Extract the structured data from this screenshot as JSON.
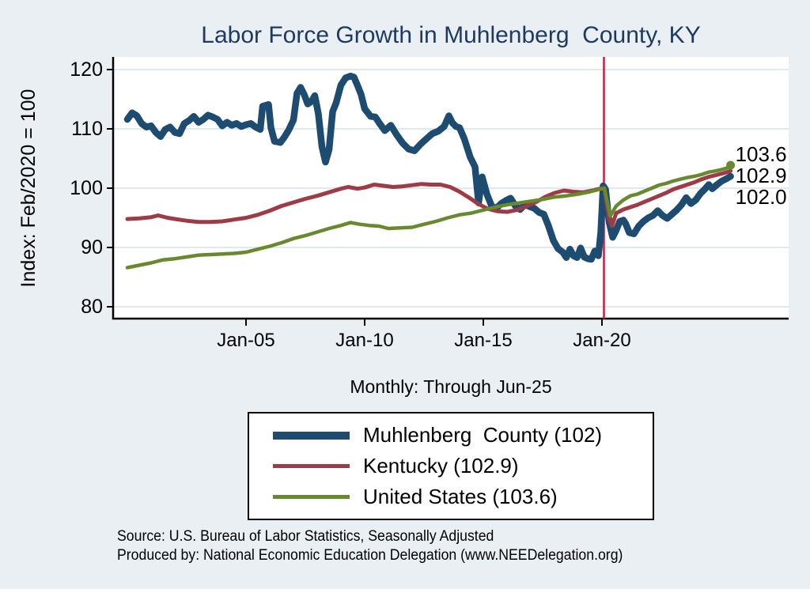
{
  "chart_data": {
    "type": "line",
    "title": "Labor Force Growth in Muhlenberg  County, KY",
    "subtitle": "Monthly: Through Jun-25",
    "ylabel": "Index: Feb/2020 = 100",
    "x_unit": "decimal_year",
    "xlim": [
      1999.4,
      2027.867
    ],
    "ylim": [
      78,
      122.13
    ],
    "yticks": [
      80,
      90,
      100,
      110,
      120
    ],
    "xticks": [
      {
        "x": 2005,
        "label": "Jan-05"
      },
      {
        "x": 2010,
        "label": "Jan-10"
      },
      {
        "x": 2015,
        "label": "Jan-15"
      },
      {
        "x": 2020,
        "label": "Jan-20"
      }
    ],
    "grid": "horizontal",
    "grid_color": "#dfe9ef",
    "plot_bg": "#ffffff",
    "page_bg": "#e9eff3",
    "axis_color": "#000000",
    "title_color": "#1f3a60",
    "vline": {
      "x": 2020.083,
      "color": "#c81f3e",
      "label": "Feb-2020 reference"
    },
    "legend_position": "bottom",
    "series": [
      {
        "name": "Muhlenberg  County (102)",
        "key": "muhlenberg",
        "color": "#1e4c70",
        "width": 8.5,
        "end_label": "102.0",
        "end_value": 102.0,
        "points": [
          [
            2000.0,
            111.6
          ],
          [
            2000.2,
            112.7
          ],
          [
            2000.4,
            112.2
          ],
          [
            2000.6,
            110.9
          ],
          [
            2000.8,
            110.3
          ],
          [
            2001.0,
            110.5
          ],
          [
            2001.2,
            109.4
          ],
          [
            2001.4,
            108.7
          ],
          [
            2001.6,
            109.9
          ],
          [
            2001.8,
            110.3
          ],
          [
            2002.0,
            109.4
          ],
          [
            2002.2,
            109.2
          ],
          [
            2002.4,
            110.9
          ],
          [
            2002.6,
            111.4
          ],
          [
            2002.8,
            112.1
          ],
          [
            2003.0,
            111.1
          ],
          [
            2003.2,
            111.6
          ],
          [
            2003.4,
            112.3
          ],
          [
            2003.6,
            112.0
          ],
          [
            2003.8,
            111.6
          ],
          [
            2004.0,
            110.5
          ],
          [
            2004.2,
            111.1
          ],
          [
            2004.4,
            110.6
          ],
          [
            2004.6,
            110.9
          ],
          [
            2004.8,
            110.4
          ],
          [
            2005.0,
            110.7
          ],
          [
            2005.2,
            110.9
          ],
          [
            2005.4,
            110.3
          ],
          [
            2005.6,
            109.9
          ],
          [
            2005.7,
            113.8
          ],
          [
            2005.95,
            114.1
          ],
          [
            2006.05,
            110.2
          ],
          [
            2006.2,
            107.9
          ],
          [
            2006.45,
            107.7
          ],
          [
            2006.6,
            108.5
          ],
          [
            2006.8,
            109.8
          ],
          [
            2007.0,
            111.5
          ],
          [
            2007.15,
            116.0
          ],
          [
            2007.3,
            117.0
          ],
          [
            2007.45,
            115.8
          ],
          [
            2007.6,
            114.2
          ],
          [
            2007.75,
            114.6
          ],
          [
            2007.9,
            115.6
          ],
          [
            2008.05,
            112.5
          ],
          [
            2008.2,
            107.0
          ],
          [
            2008.35,
            104.4
          ],
          [
            2008.5,
            106.5
          ],
          [
            2008.65,
            112.9
          ],
          [
            2008.8,
            114.4
          ],
          [
            2009.0,
            117.4
          ],
          [
            2009.2,
            118.6
          ],
          [
            2009.4,
            118.9
          ],
          [
            2009.55,
            118.7
          ],
          [
            2009.7,
            117.3
          ],
          [
            2009.85,
            115.8
          ],
          [
            2010.0,
            113.4
          ],
          [
            2010.25,
            112.1
          ],
          [
            2010.45,
            112.0
          ],
          [
            2010.65,
            110.8
          ],
          [
            2010.85,
            109.7
          ],
          [
            2011.1,
            110.6
          ],
          [
            2011.35,
            109.0
          ],
          [
            2011.6,
            107.6
          ],
          [
            2011.85,
            106.6
          ],
          [
            2012.1,
            106.3
          ],
          [
            2012.35,
            107.4
          ],
          [
            2012.6,
            108.3
          ],
          [
            2012.85,
            109.2
          ],
          [
            2013.1,
            109.6
          ],
          [
            2013.35,
            110.4
          ],
          [
            2013.55,
            112.2
          ],
          [
            2013.7,
            111.0
          ],
          [
            2013.85,
            110.4
          ],
          [
            2014.0,
            110.2
          ],
          [
            2014.2,
            108.3
          ],
          [
            2014.45,
            105.2
          ],
          [
            2014.65,
            103.6
          ],
          [
            2014.8,
            97.5
          ],
          [
            2014.95,
            101.9
          ],
          [
            2015.15,
            99.0
          ],
          [
            2015.35,
            97.0
          ],
          [
            2015.55,
            96.6
          ],
          [
            2015.75,
            97.4
          ],
          [
            2015.95,
            97.9
          ],
          [
            2016.15,
            98.3
          ],
          [
            2016.35,
            97.0
          ],
          [
            2016.55,
            96.4
          ],
          [
            2016.75,
            97.2
          ],
          [
            2016.95,
            96.9
          ],
          [
            2017.15,
            96.6
          ],
          [
            2017.35,
            95.9
          ],
          [
            2017.55,
            95.6
          ],
          [
            2017.75,
            93.6
          ],
          [
            2017.95,
            91.2
          ],
          [
            2018.15,
            89.8
          ],
          [
            2018.35,
            89.2
          ],
          [
            2018.5,
            88.3
          ],
          [
            2018.65,
            89.7
          ],
          [
            2018.8,
            88.6
          ],
          [
            2018.95,
            88.3
          ],
          [
            2019.1,
            89.9
          ],
          [
            2019.25,
            88.4
          ],
          [
            2019.4,
            88.1
          ],
          [
            2019.55,
            88.0
          ],
          [
            2019.7,
            89.4
          ],
          [
            2019.85,
            88.6
          ],
          [
            2019.95,
            92.5
          ],
          [
            2020.05,
            100.4
          ],
          [
            2020.15,
            99.8
          ],
          [
            2020.3,
            94.3
          ],
          [
            2020.45,
            91.7
          ],
          [
            2020.6,
            92.9
          ],
          [
            2020.75,
            94.4
          ],
          [
            2020.9,
            94.6
          ],
          [
            2021.0,
            94.0
          ],
          [
            2021.15,
            92.5
          ],
          [
            2021.35,
            92.3
          ],
          [
            2021.55,
            93.6
          ],
          [
            2021.75,
            94.4
          ],
          [
            2021.95,
            95.0
          ],
          [
            2022.15,
            95.4
          ],
          [
            2022.35,
            96.2
          ],
          [
            2022.55,
            95.4
          ],
          [
            2022.75,
            94.9
          ],
          [
            2022.95,
            95.6
          ],
          [
            2023.15,
            96.3
          ],
          [
            2023.35,
            97.2
          ],
          [
            2023.55,
            98.4
          ],
          [
            2023.75,
            97.4
          ],
          [
            2023.95,
            98.0
          ],
          [
            2024.15,
            99.1
          ],
          [
            2024.35,
            99.9
          ],
          [
            2024.5,
            100.6
          ],
          [
            2024.65,
            99.9
          ],
          [
            2024.85,
            100.6
          ],
          [
            2025.05,
            101.2
          ],
          [
            2025.25,
            101.6
          ],
          [
            2025.42,
            102.0
          ]
        ]
      },
      {
        "name": "Kentucky (102.9)",
        "key": "kentucky",
        "color": "#9d3c47",
        "width": 5,
        "end_label": "102.9",
        "end_value": 102.9,
        "points": [
          [
            2000.0,
            94.8
          ],
          [
            2000.5,
            94.9
          ],
          [
            2001.0,
            95.1
          ],
          [
            2001.3,
            95.4
          ],
          [
            2001.7,
            95.0
          ],
          [
            2002.0,
            94.8
          ],
          [
            2002.5,
            94.5
          ],
          [
            2003.0,
            94.3
          ],
          [
            2003.5,
            94.3
          ],
          [
            2004.0,
            94.4
          ],
          [
            2004.5,
            94.7
          ],
          [
            2005.0,
            95.0
          ],
          [
            2005.5,
            95.5
          ],
          [
            2006.0,
            96.2
          ],
          [
            2006.5,
            97.0
          ],
          [
            2007.0,
            97.6
          ],
          [
            2007.5,
            98.2
          ],
          [
            2008.0,
            98.7
          ],
          [
            2008.5,
            99.3
          ],
          [
            2009.0,
            99.9
          ],
          [
            2009.3,
            100.2
          ],
          [
            2009.7,
            99.9
          ],
          [
            2010.0,
            100.1
          ],
          [
            2010.4,
            100.6
          ],
          [
            2010.8,
            100.4
          ],
          [
            2011.2,
            100.2
          ],
          [
            2011.6,
            100.3
          ],
          [
            2012.0,
            100.5
          ],
          [
            2012.4,
            100.7
          ],
          [
            2012.8,
            100.6
          ],
          [
            2013.2,
            100.6
          ],
          [
            2013.6,
            100.2
          ],
          [
            2014.0,
            99.4
          ],
          [
            2014.4,
            98.4
          ],
          [
            2014.8,
            97.3
          ],
          [
            2015.2,
            96.5
          ],
          [
            2015.6,
            96.1
          ],
          [
            2016.0,
            96.0
          ],
          [
            2016.4,
            96.3
          ],
          [
            2016.8,
            96.9
          ],
          [
            2017.2,
            97.6
          ],
          [
            2017.6,
            98.5
          ],
          [
            2018.0,
            99.2
          ],
          [
            2018.4,
            99.6
          ],
          [
            2018.8,
            99.4
          ],
          [
            2019.2,
            99.3
          ],
          [
            2019.6,
            99.6
          ],
          [
            2019.9,
            99.9
          ],
          [
            2020.1,
            100.0
          ],
          [
            2020.3,
            94.8
          ],
          [
            2020.42,
            93.6
          ],
          [
            2020.6,
            95.8
          ],
          [
            2020.9,
            96.4
          ],
          [
            2021.2,
            96.8
          ],
          [
            2021.5,
            97.2
          ],
          [
            2021.8,
            97.7
          ],
          [
            2022.1,
            98.2
          ],
          [
            2022.4,
            98.7
          ],
          [
            2022.7,
            99.2
          ],
          [
            2023.0,
            99.8
          ],
          [
            2023.3,
            100.2
          ],
          [
            2023.6,
            100.6
          ],
          [
            2023.9,
            101.0
          ],
          [
            2024.2,
            101.5
          ],
          [
            2024.5,
            101.9
          ],
          [
            2024.8,
            102.2
          ],
          [
            2025.1,
            102.5
          ],
          [
            2025.42,
            102.9
          ]
        ]
      },
      {
        "name": "United States (103.6)",
        "key": "united-states",
        "color": "#69892f",
        "width": 4.5,
        "end_label": "103.6",
        "end_value": 103.6,
        "end_dot": true,
        "points": [
          [
            2000.0,
            86.6
          ],
          [
            2000.5,
            87.0
          ],
          [
            2001.0,
            87.4
          ],
          [
            2001.5,
            87.9
          ],
          [
            2002.0,
            88.1
          ],
          [
            2002.5,
            88.4
          ],
          [
            2003.0,
            88.7
          ],
          [
            2003.5,
            88.8
          ],
          [
            2004.0,
            88.9
          ],
          [
            2004.5,
            89.0
          ],
          [
            2005.0,
            89.2
          ],
          [
            2005.5,
            89.7
          ],
          [
            2006.0,
            90.2
          ],
          [
            2006.5,
            90.8
          ],
          [
            2007.0,
            91.5
          ],
          [
            2007.5,
            92.0
          ],
          [
            2008.0,
            92.6
          ],
          [
            2008.5,
            93.2
          ],
          [
            2009.0,
            93.7
          ],
          [
            2009.4,
            94.2
          ],
          [
            2009.8,
            93.9
          ],
          [
            2010.2,
            93.7
          ],
          [
            2010.6,
            93.6
          ],
          [
            2011.0,
            93.2
          ],
          [
            2011.5,
            93.3
          ],
          [
            2012.0,
            93.4
          ],
          [
            2012.5,
            93.9
          ],
          [
            2013.0,
            94.4
          ],
          [
            2013.5,
            95.0
          ],
          [
            2014.0,
            95.5
          ],
          [
            2014.5,
            95.8
          ],
          [
            2015.0,
            96.3
          ],
          [
            2015.5,
            96.8
          ],
          [
            2016.0,
            97.2
          ],
          [
            2016.5,
            97.5
          ],
          [
            2017.0,
            97.8
          ],
          [
            2017.5,
            98.1
          ],
          [
            2018.0,
            98.5
          ],
          [
            2018.5,
            98.7
          ],
          [
            2019.0,
            99.0
          ],
          [
            2019.5,
            99.4
          ],
          [
            2019.9,
            99.8
          ],
          [
            2020.1,
            100.0
          ],
          [
            2020.35,
            95.3
          ],
          [
            2020.6,
            97.0
          ],
          [
            2020.9,
            98.0
          ],
          [
            2021.2,
            98.7
          ],
          [
            2021.5,
            99.0
          ],
          [
            2021.8,
            99.5
          ],
          [
            2022.1,
            100.0
          ],
          [
            2022.4,
            100.5
          ],
          [
            2022.7,
            100.8
          ],
          [
            2023.0,
            101.2
          ],
          [
            2023.3,
            101.5
          ],
          [
            2023.6,
            101.8
          ],
          [
            2023.9,
            102.0
          ],
          [
            2024.2,
            102.3
          ],
          [
            2024.5,
            102.7
          ],
          [
            2024.8,
            102.9
          ],
          [
            2025.1,
            103.2
          ],
          [
            2025.42,
            103.6
          ]
        ]
      }
    ]
  },
  "footer": {
    "source_line": "Source: U.S. Bureau of Labor Statistics, Seasonally Adjusted",
    "produced_line": "Produced by: National Economic Education Delegation (www.NEEDelegation.org)"
  }
}
